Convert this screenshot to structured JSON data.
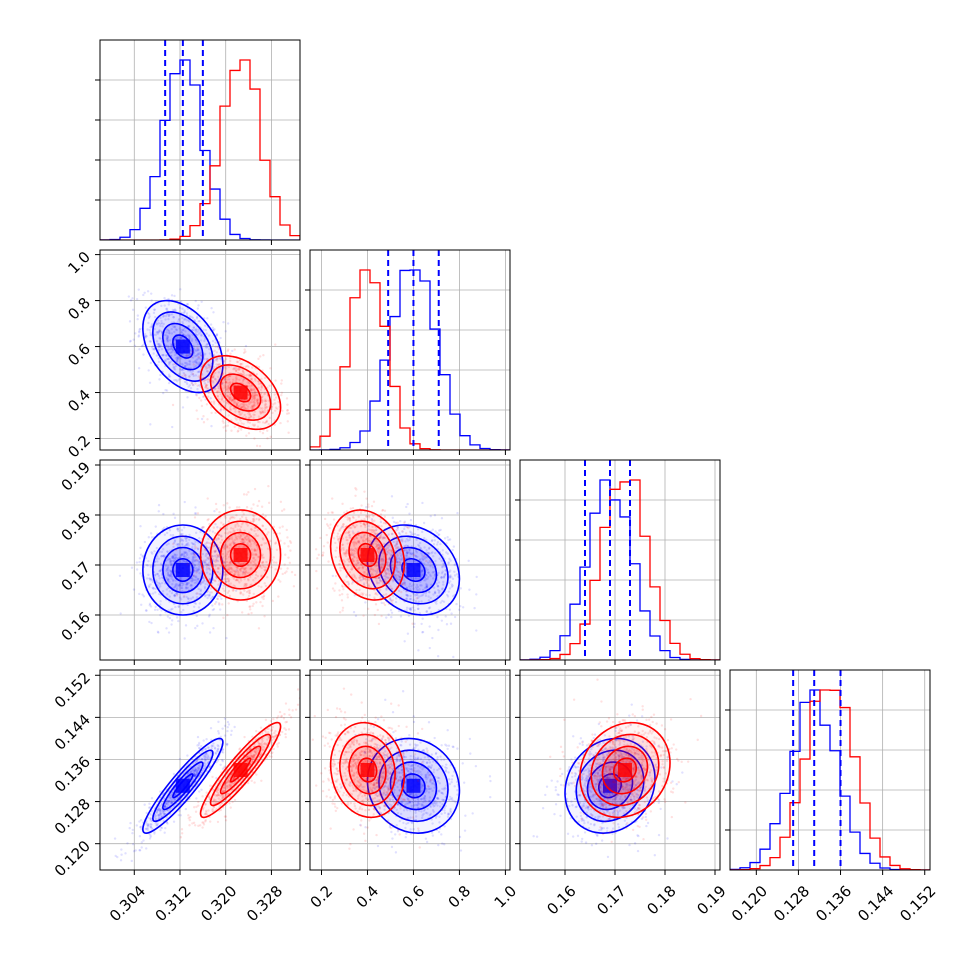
{
  "colors": {
    "series_a": "#0000ff",
    "series_b": "#ff0000"
  },
  "chart_data": {
    "type": "corner",
    "grid": true,
    "series": [
      {
        "name": "blue",
        "color": "#0000ff",
        "mean": [
          0.3125,
          0.6,
          0.169,
          0.131
        ],
        "std": [
          0.0035,
          0.1,
          0.0045,
          0.0045
        ],
        "quantiles": [
          [
            0.3094,
            0.3125,
            0.316
          ],
          [
            0.49,
            0.6,
            0.71
          ],
          [
            0.164,
            0.169,
            0.173
          ],
          [
            0.127,
            0.131,
            0.136
          ]
        ]
      },
      {
        "name": "red",
        "color": "#ff0000",
        "mean": [
          0.3226,
          0.4,
          0.172,
          0.134
        ],
        "std": [
          0.0035,
          0.08,
          0.0045,
          0.0045
        ]
      }
    ],
    "correlations": [
      {
        "params": [
          0,
          1
        ],
        "blue": -0.4,
        "red": -0.4
      },
      {
        "params": [
          0,
          2
        ],
        "blue": 0.0,
        "red": 0.0
      },
      {
        "params": [
          1,
          2
        ],
        "blue": -0.2,
        "red": -0.2
      },
      {
        "params": [
          0,
          3
        ],
        "blue": 0.92,
        "red": 0.92
      },
      {
        "params": [
          1,
          3
        ],
        "blue": -0.1,
        "red": -0.1
      },
      {
        "params": [
          2,
          3
        ],
        "blue": 0.15,
        "red": 0.15
      }
    ],
    "parameters": [
      {
        "range": [
          0.298,
          0.333
        ],
        "ticks": [
          "0.304",
          "0.312",
          "0.320",
          "0.328"
        ],
        "tick_values": [
          0.304,
          0.312,
          0.32,
          0.328
        ]
      },
      {
        "range": [
          0.15,
          1.02
        ],
        "ticks": [
          "0.2",
          "0.4",
          "0.6",
          "0.8",
          "1.0"
        ],
        "tick_values": [
          0.2,
          0.4,
          0.6,
          0.8,
          1.0
        ]
      },
      {
        "range": [
          0.151,
          0.191
        ],
        "ticks": [
          "0.16",
          "0.17",
          "0.18",
          "0.19"
        ],
        "tick_values": [
          0.16,
          0.17,
          0.18,
          0.19
        ]
      },
      {
        "range": [
          0.115,
          0.153
        ],
        "ticks": [
          "0.120",
          "0.128",
          "0.136",
          "0.144",
          "0.152"
        ],
        "tick_values": [
          0.12,
          0.128,
          0.136,
          0.144,
          0.152
        ]
      }
    ],
    "contour_levels_sigma": [
      0.5,
      1.0,
      1.5,
      2.0
    ]
  }
}
